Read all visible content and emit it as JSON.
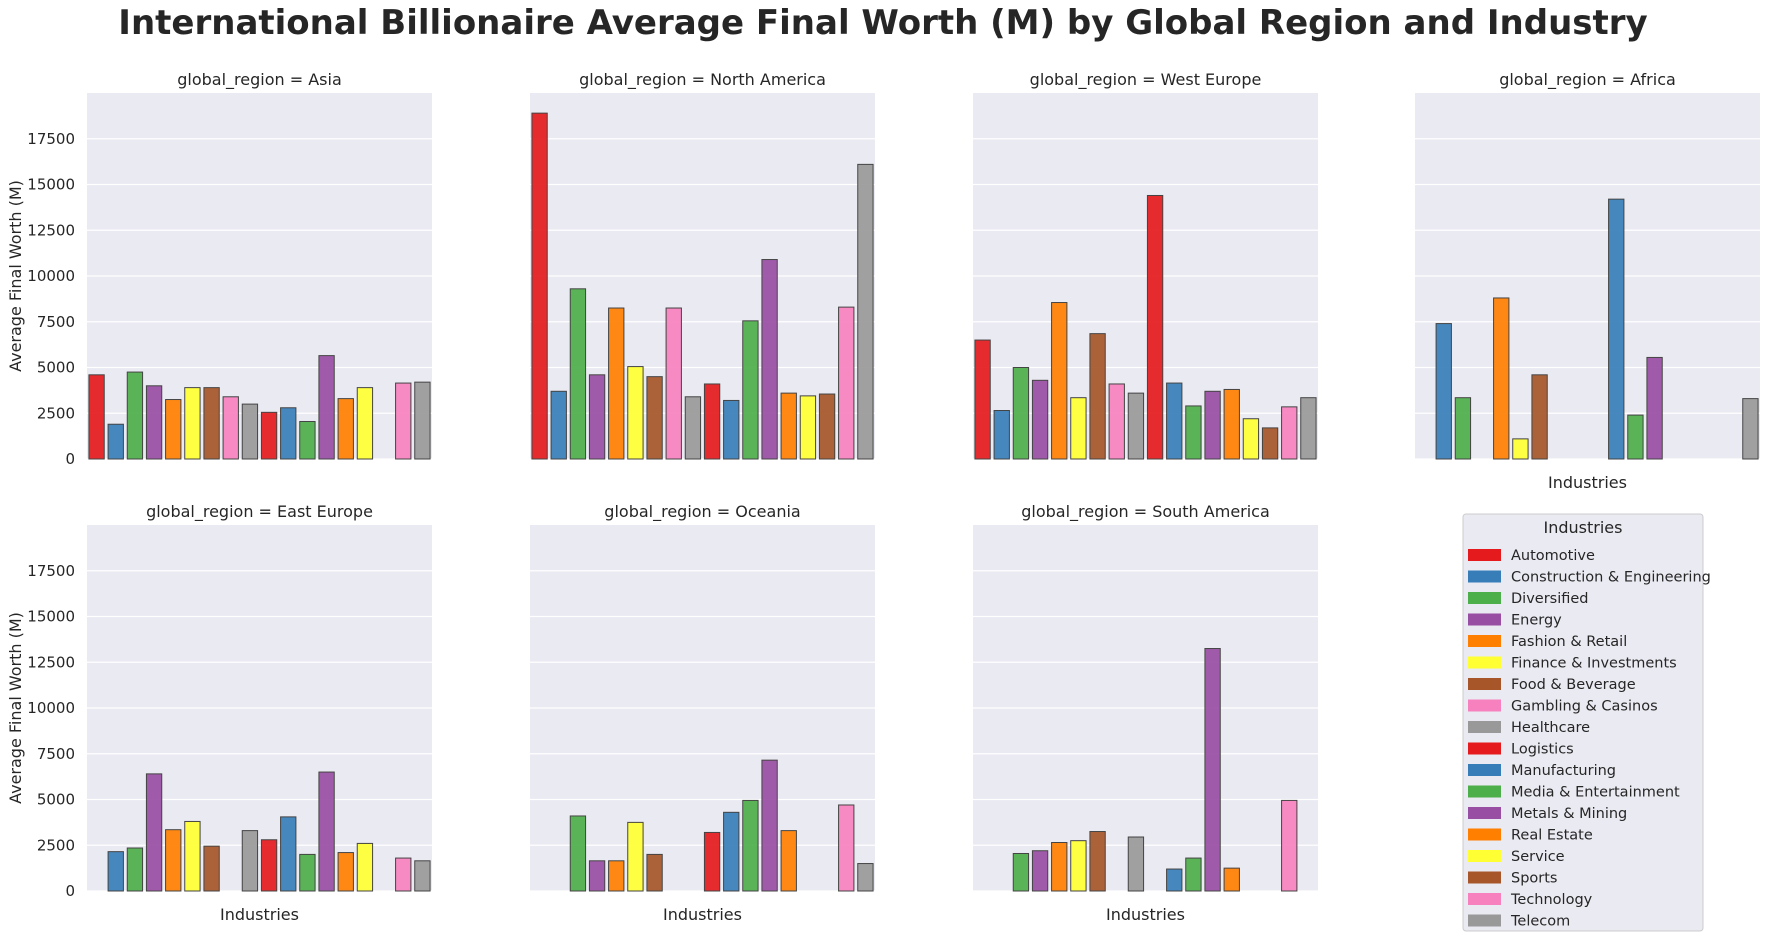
{
  "chart_data": {
    "type": "bar",
    "title": "International Billionaire Average Final Worth (M) by Global Region and Industry",
    "ylabel": "Average Final Worth (M)",
    "xlabel": "Industries",
    "ylim": [
      0,
      20000
    ],
    "yticks": [
      0,
      2500,
      5000,
      7500,
      10000,
      12500,
      15000,
      17500
    ],
    "grid": true,
    "legend_title": "Industries",
    "legend_position": "bottom-right panel",
    "categories": [
      "Automotive",
      "Construction & Engineering",
      "Diversified",
      "Energy",
      "Fashion & Retail",
      "Finance & Investments",
      "Food & Beverage",
      "Gambling & Casinos",
      "Healthcare",
      "Logistics",
      "Manufacturing",
      "Media & Entertainment",
      "Metals & Mining",
      "Real Estate",
      "Service",
      "Sports",
      "Technology",
      "Telecom"
    ],
    "colors": [
      "#e41a1c",
      "#377eb8",
      "#4daf4a",
      "#984ea3",
      "#ff7f00",
      "#ffff33",
      "#a65628",
      "#f781bf",
      "#999999",
      "#e41a1c",
      "#377eb8",
      "#4daf4a",
      "#984ea3",
      "#ff7f00",
      "#ffff33",
      "#a65628",
      "#f781bf",
      "#999999"
    ],
    "panels": [
      {
        "label": "global_region = Asia",
        "values": [
          4600,
          1900,
          4750,
          4000,
          3250,
          3900,
          3900,
          3400,
          3000,
          2550,
          2800,
          2050,
          5650,
          3300,
          3900,
          null,
          4150,
          4200
        ]
      },
      {
        "label": "global_region = North America",
        "values": [
          18900,
          3700,
          9300,
          4600,
          8250,
          5050,
          4500,
          8250,
          3400,
          4100,
          3200,
          7550,
          10900,
          3600,
          3450,
          3550,
          8300,
          16100
        ]
      },
      {
        "label": "global_region = West Europe",
        "values": [
          6500,
          2650,
          5000,
          4300,
          8550,
          3350,
          6850,
          4100,
          3600,
          14400,
          4150,
          2900,
          3700,
          3800,
          2200,
          1700,
          2850,
          3350
        ]
      },
      {
        "label": "global_region = Africa",
        "values": [
          null,
          7400,
          3350,
          null,
          8800,
          1100,
          4600,
          null,
          null,
          null,
          14200,
          2400,
          5550,
          null,
          null,
          null,
          null,
          3300
        ]
      },
      {
        "label": "global_region = East Europe",
        "values": [
          null,
          2150,
          2350,
          6400,
          3350,
          3800,
          2450,
          null,
          3300,
          2800,
          4050,
          2000,
          6500,
          2100,
          2600,
          null,
          1800,
          1650
        ]
      },
      {
        "label": "global_region = Oceania",
        "values": [
          null,
          null,
          4100,
          1650,
          1650,
          3750,
          2000,
          null,
          null,
          3200,
          4300,
          4950,
          7150,
          3300,
          null,
          null,
          4700,
          1500
        ]
      },
      {
        "label": "global_region = South America",
        "values": [
          null,
          null,
          2050,
          2200,
          2650,
          2750,
          3250,
          null,
          2950,
          null,
          1200,
          1800,
          13250,
          1250,
          null,
          null,
          4950,
          null
        ]
      }
    ]
  }
}
